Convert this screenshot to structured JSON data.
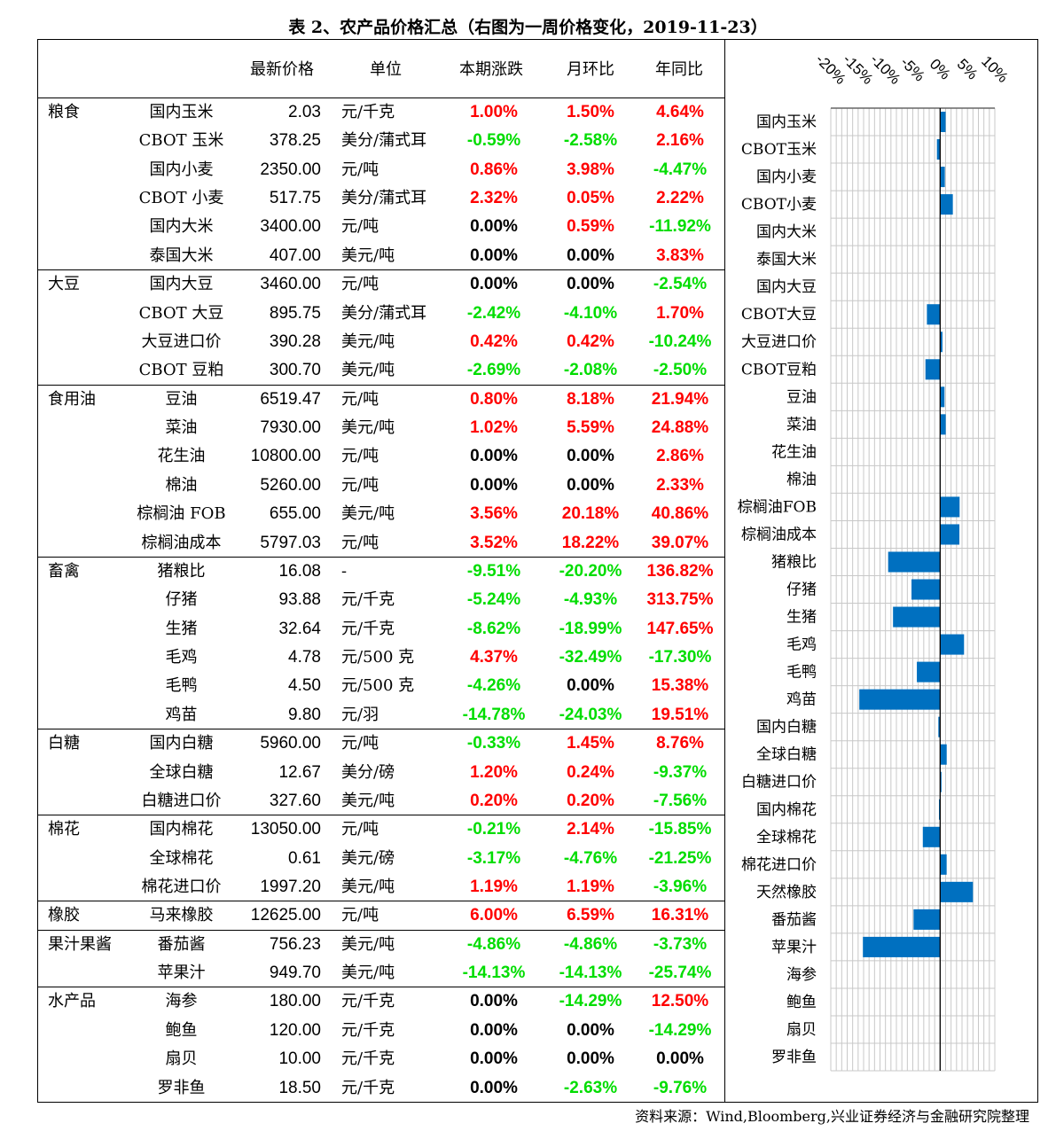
{
  "title": "表 2、农产品价格汇总（右图为一周价格变化，2019-11-23）",
  "headers": [
    "最新价格",
    "单位",
    "本期涨跌",
    "月环比",
    "年同比"
  ],
  "colors": {
    "up": "#FF0000",
    "down": "#00DD00",
    "flat": "#000000",
    "bar": "#0070C0"
  },
  "groups": [
    {
      "name": "粮食",
      "rows": [
        [
          "国内玉米",
          "2.03",
          "元/千克",
          "1.00%",
          "1.50%",
          "4.64%"
        ],
        [
          "CBOT 玉米",
          "378.25",
          "美分/蒲式耳",
          "-0.59%",
          "-2.58%",
          "2.16%"
        ],
        [
          "国内小麦",
          "2350.00",
          "元/吨",
          "0.86%",
          "3.98%",
          "-4.47%"
        ],
        [
          "CBOT 小麦",
          "517.75",
          "美分/蒲式耳",
          "2.32%",
          "0.05%",
          "2.22%"
        ],
        [
          "国内大米",
          "3400.00",
          "元/吨",
          "0.00%",
          "0.59%",
          "-11.92%"
        ],
        [
          "泰国大米",
          "407.00",
          "美元/吨",
          "0.00%",
          "0.00%",
          "3.83%"
        ]
      ]
    },
    {
      "name": "大豆",
      "rows": [
        [
          "国内大豆",
          "3460.00",
          "元/吨",
          "0.00%",
          "0.00%",
          "-2.54%"
        ],
        [
          "CBOT 大豆",
          "895.75",
          "美分/蒲式耳",
          "-2.42%",
          "-4.10%",
          "1.70%"
        ],
        [
          "大豆进口价",
          "390.28",
          "美元/吨",
          "0.42%",
          "0.42%",
          "-10.24%"
        ],
        [
          "CBOT 豆粕",
          "300.70",
          "美元/吨",
          "-2.69%",
          "-2.08%",
          "-2.50%"
        ]
      ]
    },
    {
      "name": "食用油",
      "rows": [
        [
          "豆油",
          "6519.47",
          "元/吨",
          "0.80%",
          "8.18%",
          "21.94%"
        ],
        [
          "菜油",
          "7930.00",
          "美元/吨",
          "1.02%",
          "5.59%",
          "24.88%"
        ],
        [
          "花生油",
          "10800.00",
          "元/吨",
          "0.00%",
          "0.00%",
          "2.86%"
        ],
        [
          "棉油",
          "5260.00",
          "元/吨",
          "0.00%",
          "0.00%",
          "2.33%"
        ],
        [
          "棕榈油 FOB",
          "655.00",
          "美元/吨",
          "3.56%",
          "20.18%",
          "40.86%"
        ],
        [
          "棕榈油成本",
          "5797.03",
          "元/吨",
          "3.52%",
          "18.22%",
          "39.07%"
        ]
      ]
    },
    {
      "name": "畜禽",
      "rows": [
        [
          "猪粮比",
          "16.08",
          "-",
          "-9.51%",
          "-20.20%",
          "136.82%"
        ],
        [
          "仔猪",
          "93.88",
          "元/千克",
          "-5.24%",
          "-4.93%",
          "313.75%"
        ],
        [
          "生猪",
          "32.64",
          "元/千克",
          "-8.62%",
          "-18.99%",
          "147.65%"
        ],
        [
          "毛鸡",
          "4.78",
          "元/500 克",
          "4.37%",
          "-32.49%",
          "-17.30%"
        ],
        [
          "毛鸭",
          "4.50",
          "元/500 克",
          "-4.26%",
          "0.00%",
          "15.38%"
        ],
        [
          "鸡苗",
          "9.80",
          "元/羽",
          "-14.78%",
          "-24.03%",
          "19.51%"
        ]
      ]
    },
    {
      "name": "白糖",
      "rows": [
        [
          "国内白糖",
          "5960.00",
          "元/吨",
          "-0.33%",
          "1.45%",
          "8.76%"
        ],
        [
          "全球白糖",
          "12.67",
          "美分/磅",
          "1.20%",
          "0.24%",
          "-9.37%"
        ],
        [
          "白糖进口价",
          "327.60",
          "美元/吨",
          "0.20%",
          "0.20%",
          "-7.56%"
        ]
      ]
    },
    {
      "name": "棉花",
      "rows": [
        [
          "国内棉花",
          "13050.00",
          "元/吨",
          "-0.21%",
          "2.14%",
          "-15.85%"
        ],
        [
          "全球棉花",
          "0.61",
          "美元/磅",
          "-3.17%",
          "-4.76%",
          "-21.25%"
        ],
        [
          "棉花进口价",
          "1997.20",
          "美元/吨",
          "1.19%",
          "1.19%",
          "-3.96%"
        ]
      ]
    },
    {
      "name": "橡胶",
      "rows": [
        [
          "马来橡胶",
          "12625.00",
          "元/吨",
          "6.00%",
          "6.59%",
          "16.31%"
        ]
      ]
    },
    {
      "name": "果汁果酱",
      "rows": [
        [
          "番茄酱",
          "756.23",
          "美元/吨",
          "-4.86%",
          "-4.86%",
          "-3.73%"
        ],
        [
          "苹果汁",
          "949.70",
          "美元/吨",
          "-14.13%",
          "-14.13%",
          "-25.74%"
        ]
      ]
    },
    {
      "name": "水产品",
      "rows": [
        [
          "海参",
          "180.00",
          "元/千克",
          "0.00%",
          "-14.29%",
          "12.50%"
        ],
        [
          "鲍鱼",
          "120.00",
          "元/千克",
          "0.00%",
          "0.00%",
          "-14.29%"
        ],
        [
          "扇贝",
          "10.00",
          "元/千克",
          "0.00%",
          "0.00%",
          "0.00%"
        ],
        [
          "罗非鱼",
          "18.50",
          "元/千克",
          "0.00%",
          "-2.63%",
          "-9.76%"
        ]
      ]
    }
  ],
  "chart_data": {
    "type": "bar",
    "orientation": "horizontal",
    "categories": [
      "国内玉米",
      "CBOT玉米",
      "国内小麦",
      "CBOT小麦",
      "国内大米",
      "泰国大米",
      "国内大豆",
      "CBOT大豆",
      "大豆进口价",
      "CBOT豆粕",
      "豆油",
      "菜油",
      "花生油",
      "棉油",
      "棕榈油FOB",
      "棕榈油成本",
      "猪粮比",
      "仔猪",
      "生猪",
      "毛鸡",
      "毛鸭",
      "鸡苗",
      "国内白糖",
      "全球白糖",
      "白糖进口价",
      "国内棉花",
      "全球棉花",
      "棉花进口价",
      "天然橡胶",
      "番茄酱",
      "苹果汁",
      "海参",
      "鲍鱼",
      "扇贝",
      "罗非鱼"
    ],
    "values": [
      1.0,
      -0.59,
      0.86,
      2.32,
      0.0,
      0.0,
      0.0,
      -2.42,
      0.42,
      -2.69,
      0.8,
      1.02,
      0.0,
      0.0,
      3.56,
      3.52,
      -9.51,
      -5.24,
      -8.62,
      4.37,
      -4.26,
      -14.78,
      -0.33,
      1.2,
      0.2,
      -0.21,
      -3.17,
      1.19,
      6.0,
      -4.86,
      -14.13,
      0.0,
      0.0,
      0.0,
      0.0
    ],
    "xlim": [
      -20,
      10
    ],
    "tick_labels": [
      "-20%",
      "-15%",
      "-10%",
      "-5%",
      "0%",
      "5%",
      "10%"
    ],
    "ticks": [
      -20,
      -15,
      -10,
      -5,
      0,
      5,
      10
    ],
    "grid": true,
    "axis_position": "top"
  },
  "source": "资料来源：Wind,Bloomberg,兴业证券经济与金融研究院整理"
}
